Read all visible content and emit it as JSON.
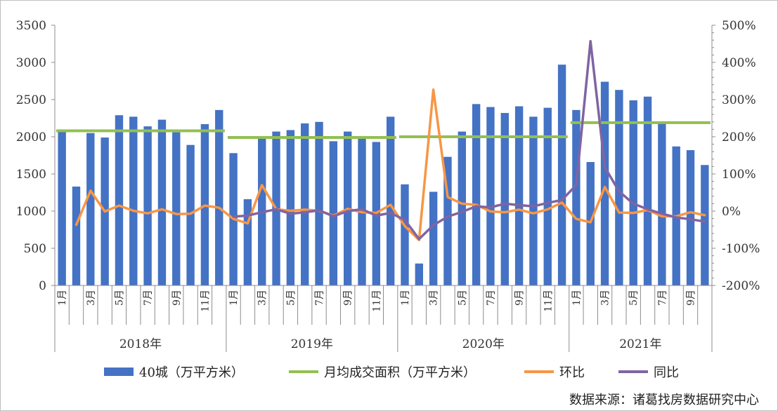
{
  "chart_data": {
    "type": "bar",
    "categories": [
      "1月",
      "2月",
      "3月",
      "4月",
      "5月",
      "6月",
      "7月",
      "8月",
      "9月",
      "10月",
      "11月",
      "12月",
      "1月",
      "2月",
      "3月",
      "4月",
      "5月",
      "6月",
      "7月",
      "8月",
      "9月",
      "10月",
      "11月",
      "12月",
      "1月",
      "2月",
      "3月",
      "4月",
      "5月",
      "6月",
      "7月",
      "8月",
      "9月",
      "10月",
      "11月",
      "12月",
      "1月",
      "2月",
      "3月",
      "4月",
      "5月",
      "6月",
      "7月",
      "8月",
      "9月",
      "10月"
    ],
    "tick_labels": [
      "1月",
      "",
      "3月",
      "",
      "5月",
      "",
      "7月",
      "",
      "9月",
      "",
      "11月",
      "",
      "1月",
      "",
      "3月",
      "",
      "5月",
      "",
      "7月",
      "",
      "9月",
      "",
      "11月",
      "",
      "1月",
      "",
      "3月",
      "",
      "5月",
      "",
      "7月",
      "",
      "9月",
      "",
      "11月",
      "",
      "1月",
      "",
      "3月",
      "",
      "5月",
      "",
      "7月",
      "",
      "9月",
      ""
    ],
    "years": [
      "2018年",
      "2019年",
      "2020年",
      "2021年"
    ],
    "series": [
      {
        "name": "40城（万平方米）",
        "type": "bar",
        "axis": "left",
        "color": "#4472C4",
        "values": [
          2080,
          1330,
          2050,
          1990,
          2290,
          2270,
          2140,
          2230,
          2060,
          1890,
          2170,
          2360,
          1780,
          1160,
          1990,
          2070,
          2090,
          2180,
          2200,
          1940,
          2070,
          2010,
          1930,
          2270,
          1360,
          295,
          1260,
          1730,
          2070,
          2440,
          2400,
          2320,
          2410,
          2270,
          2390,
          2970,
          2360,
          1660,
          2740,
          2630,
          2490,
          2540,
          2190,
          1870,
          1820,
          1620
        ]
      },
      {
        "name": "月均成交面积（万平方米）",
        "type": "segment",
        "axis": "left",
        "color": "#92C050",
        "segments": [
          {
            "from": 0,
            "to": 11,
            "value": 2080
          },
          {
            "from": 12,
            "to": 23,
            "value": 1990
          },
          {
            "from": 24,
            "to": 35,
            "value": 2000
          },
          {
            "from": 36,
            "to": 45,
            "value": 2190
          }
        ]
      },
      {
        "name": "环比",
        "type": "line",
        "axis": "right",
        "color": "#F79646",
        "values": [
          null,
          -37,
          55,
          -1,
          15,
          1,
          -6,
          5,
          -8,
          -7,
          15,
          9,
          -21,
          -33,
          70,
          5,
          1,
          4,
          1,
          -12,
          6,
          -3,
          -5,
          17,
          -40,
          -78,
          327,
          38,
          20,
          17,
          -1,
          -3,
          4,
          -6,
          5,
          23,
          -21,
          -30,
          65,
          -4,
          -5,
          3,
          -14,
          -14,
          -3,
          -11
        ]
      },
      {
        "name": "同比",
        "type": "line",
        "axis": "right",
        "color": "#8064A2",
        "values": [
          null,
          null,
          null,
          null,
          null,
          null,
          null,
          null,
          null,
          null,
          null,
          null,
          -15,
          -12,
          -3,
          5,
          -7,
          -3,
          2,
          -14,
          0,
          5,
          -12,
          -5,
          -24,
          -75,
          -38,
          -15,
          -2,
          13,
          10,
          20,
          16,
          13,
          22,
          30,
          70,
          457,
          118,
          53,
          20,
          5,
          -7,
          -17,
          -22,
          -28
        ]
      }
    ],
    "left_axis": {
      "min": 0,
      "max": 3500,
      "step": 500,
      "labels": [
        "0",
        "500",
        "1000",
        "1500",
        "2000",
        "2500",
        "3000",
        "3500"
      ]
    },
    "right_axis": {
      "min": -200,
      "max": 500,
      "step": 100,
      "labels": [
        "-200%",
        "-100%",
        "0%",
        "100%",
        "200%",
        "300%",
        "400%",
        "500%"
      ]
    },
    "legend": {
      "placement": "bottom",
      "items": [
        {
          "label": "40城（万平方米）",
          "kind": "bar",
          "color": "#4472C4"
        },
        {
          "label": "月均成交面积（万平方米）",
          "kind": "line",
          "color": "#92C050"
        },
        {
          "label": "环比",
          "kind": "line",
          "color": "#F79646"
        },
        {
          "label": "同比",
          "kind": "line",
          "color": "#8064A2"
        }
      ]
    },
    "grid": false,
    "title": "",
    "xlabel": "",
    "ylabel": ""
  },
  "source": "数据来源：诸葛找房数据研究中心"
}
